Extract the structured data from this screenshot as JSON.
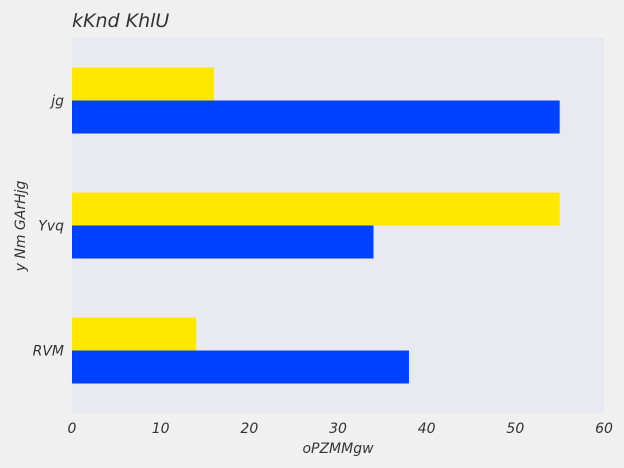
{
  "chart_data": {
    "type": "bar",
    "orientation": "horizontal",
    "title": "kKnd KhlU",
    "xlabel": "oPZMMgw",
    "ylabel": "y Nm GArHjg",
    "categories": [
      "RVM",
      "Yvq",
      "jg"
    ],
    "series": [
      {
        "color": "#0040ff",
        "values": [
          38,
          34,
          55
        ]
      },
      {
        "color": "#ffe800",
        "values": [
          14,
          55,
          16
        ]
      }
    ],
    "xlim": [
      0,
      60
    ],
    "xticks": [
      0,
      10,
      20,
      30,
      40,
      50,
      60
    ],
    "grid": false,
    "legend": "none",
    "plot_background": "#e8e9f1"
  }
}
